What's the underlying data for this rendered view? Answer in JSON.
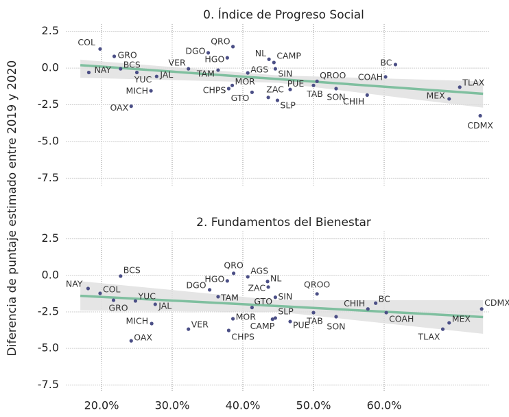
{
  "chart_data": [
    {
      "type": "scatter",
      "title": "0. Índice de Progreso Social",
      "ylabel": "Diferencia de puntaje estimado entre 2019 y 2020",
      "labels": [
        "COL",
        "GRO",
        "NAY",
        "BCS",
        "YUC",
        "JAL",
        "MICH",
        "OAX",
        "VER",
        "DGO",
        "QRO",
        "HGO",
        "TAM",
        "MOR",
        "CHPS",
        "AGS",
        "GTO",
        "NL",
        "CAMP",
        "SIN",
        "ZAC",
        "SLP",
        "PUE",
        "TAB",
        "QROO",
        "SON",
        "CHIH",
        "BC",
        "COAH",
        "TLAX",
        "MEX",
        "CDMX"
      ],
      "x": [
        19.8,
        21.8,
        18.2,
        22.7,
        25.0,
        27.8,
        27.0,
        24.2,
        32.3,
        35.1,
        38.6,
        37.8,
        36.5,
        38.5,
        38.0,
        40.7,
        41.3,
        43.7,
        44.4,
        44.6,
        43.6,
        44.9,
        46.7,
        50.0,
        50.5,
        53.2,
        57.6,
        61.6,
        60.2,
        70.7,
        69.2,
        73.6
      ],
      "y": [
        1.3,
        0.8,
        -0.3,
        -0.05,
        -0.3,
        -0.57,
        -1.55,
        -2.6,
        -0.05,
        1.04,
        1.46,
        0.7,
        -0.14,
        -1.18,
        -1.4,
        -0.33,
        -1.65,
        0.6,
        0.38,
        -0.05,
        -2.0,
        -2.2,
        -1.46,
        -1.18,
        -0.9,
        -1.4,
        -1.84,
        0.24,
        -0.6,
        -1.3,
        -2.1,
        -3.25
      ],
      "color": "#4b4f86",
      "trend": {
        "x": [
          17,
          45,
          74
        ],
        "values": [
          0.2,
          -0.75,
          -1.75
        ],
        "lower": [
          -0.66,
          -1.0,
          -2.7
        ],
        "upper": [
          0.57,
          -0.5,
          -0.9
        ],
        "color": "#7fbf9f",
        "band_color": "#dedede"
      },
      "xlim": [
        15,
        75
      ],
      "ylim": [
        -8,
        3
      ],
      "xticks": [
        20,
        30,
        40,
        50,
        60
      ],
      "yticks": [
        -7.5,
        {
          "value": -5,
          "label": "-5.0"
        },
        -2.5,
        {
          "value": 0,
          "label": "0.0"
        },
        2.5
      ],
      "grid": true
    },
    {
      "type": "scatter",
      "title": "2. Fundamentos del Bienestar",
      "labels": [
        "NAY",
        "COL",
        "BCS",
        "GRO",
        "YUC",
        "JAL",
        "MICH",
        "OAX",
        "VER",
        "DGO",
        "HGO",
        "QRO",
        "TAM",
        "MOR",
        "CHPS",
        "AGS",
        "GTO",
        "ZAC",
        "NL",
        "SIN",
        "SLP",
        "CAMP",
        "PUE",
        "TAB",
        "QROO",
        "SON",
        "CHIH",
        "BC",
        "COAH",
        "TLAX",
        "MEX",
        "CDMX"
      ],
      "x": [
        18.1,
        19.8,
        22.7,
        21.7,
        24.8,
        27.6,
        27.1,
        24.2,
        32.3,
        35.3,
        37.8,
        38.7,
        36.5,
        38.6,
        38.0,
        40.7,
        41.3,
        43.6,
        43.5,
        44.6,
        44.6,
        44.2,
        46.7,
        50.0,
        50.5,
        53.2,
        57.7,
        58.8,
        60.3,
        68.3,
        69.2,
        73.8
      ],
      "y": [
        -0.9,
        -1.23,
        -0.05,
        -1.7,
        -1.75,
        -1.98,
        -3.3,
        -4.48,
        -3.68,
        -0.99,
        -0.38,
        0.14,
        -1.46,
        -2.97,
        -3.77,
        -0.1,
        -2.2,
        -0.8,
        -0.42,
        -1.5,
        -2.92,
        -3.0,
        -3.16,
        -2.55,
        -1.27,
        -2.83,
        -2.3,
        -1.9,
        -2.55,
        -3.68,
        -3.25,
        -2.3
      ],
      "color": "#4b4f86",
      "trend": {
        "x": [
          17,
          45,
          74
        ],
        "values": [
          -1.4,
          -2.1,
          -2.85
        ],
        "lower": [
          -2.4,
          -2.5,
          -4.0
        ],
        "upper": [
          -0.4,
          -1.7,
          -1.7
        ],
        "color": "#7fbf9f",
        "band_color": "#dedede"
      },
      "xlim": [
        15,
        75
      ],
      "ylim": [
        -8,
        3
      ],
      "xticks": [
        {
          "value": 20,
          "label": "20.0%"
        },
        {
          "value": 30,
          "label": "30.0%"
        },
        {
          "value": 40,
          "label": "40.0%"
        },
        {
          "value": 50,
          "label": "50.0%"
        },
        {
          "value": 60,
          "label": "60.0%"
        }
      ],
      "yticks": [
        -7.5,
        {
          "value": -5,
          "label": "-5.0"
        },
        -2.5,
        {
          "value": 0,
          "label": "0.0"
        },
        2.5
      ],
      "grid": true
    }
  ]
}
